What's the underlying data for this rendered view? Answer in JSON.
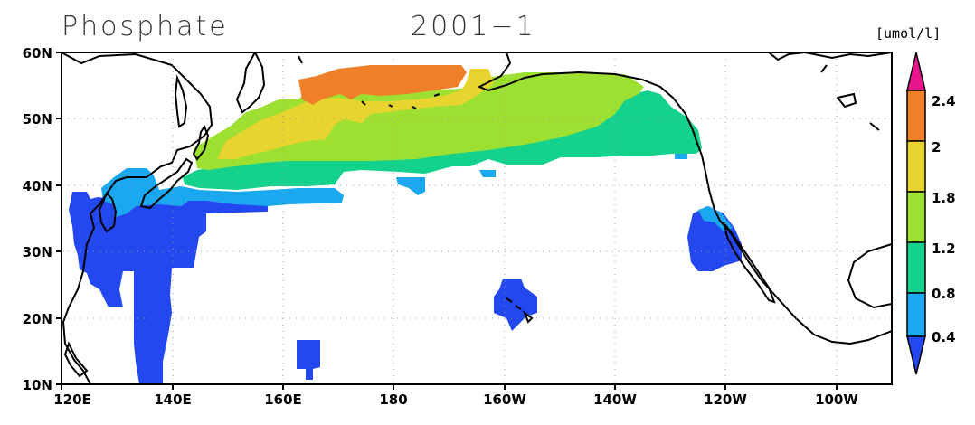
{
  "title_left": "Phosphate",
  "title_right": "2001−1",
  "unit_label": "[umol/l]",
  "colors": {
    "level_0_4": "#2448f0",
    "level_0_8": "#1aa8f0",
    "level_1_2": "#14d28c",
    "level_1_8": "#9ee032",
    "level_2": "#e8d42e",
    "level_2_4": "#f08028",
    "over": "#e8148c"
  },
  "map": {
    "lat_labels": [
      "60N",
      "50N",
      "40N",
      "30N",
      "20N",
      "10N"
    ],
    "lon_labels": [
      "120E",
      "140E",
      "160E",
      "180",
      "160W",
      "140W",
      "120W",
      "100W"
    ]
  },
  "colorbar": {
    "labels": [
      "2.4",
      "2",
      "1.8",
      "1.2",
      "0.8",
      "0.4"
    ]
  }
}
